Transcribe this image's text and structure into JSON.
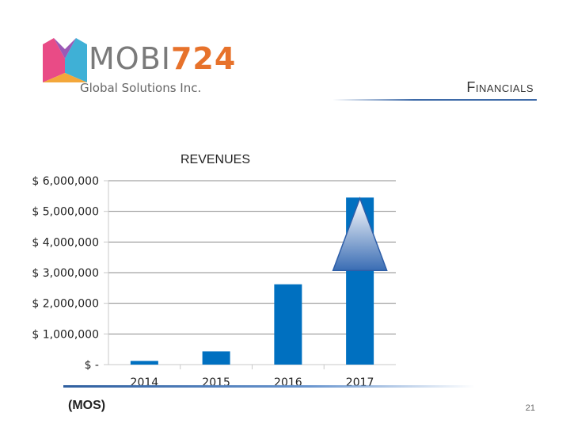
{
  "logo": {
    "brand_prefix": "MOBI",
    "brand_number": "724",
    "subtitle": "Global Solutions Inc."
  },
  "header": {
    "section_title": "Financials"
  },
  "footer": {
    "label": "(MOS)",
    "page_number": "21"
  },
  "colors": {
    "bar": "#0070c0",
    "axis": "#c9c9c9",
    "grid": "#8c8c8c",
    "arrow_top": "#ffffff",
    "arrow_bottom": "#3a6db4"
  },
  "chart_data": {
    "type": "bar",
    "title": "REVENUES",
    "categories": [
      "2014",
      "2015",
      "2016",
      "2017"
    ],
    "values": [
      120000,
      430000,
      2620000,
      5450000
    ],
    "ylim": [
      0,
      6000000
    ],
    "y_ticks": [
      0,
      1000000,
      2000000,
      3000000,
      4000000,
      5000000,
      6000000
    ],
    "y_tick_labels": [
      "$ -",
      "$ 1,000,000",
      "$ 2,000,000",
      "$ 3,000,000",
      "$ 4,000,000",
      "$ 5,000,000",
      "$ 6,000,000"
    ],
    "grid": true,
    "legend": "none",
    "annotation": "upward-arrow-on-2017"
  }
}
